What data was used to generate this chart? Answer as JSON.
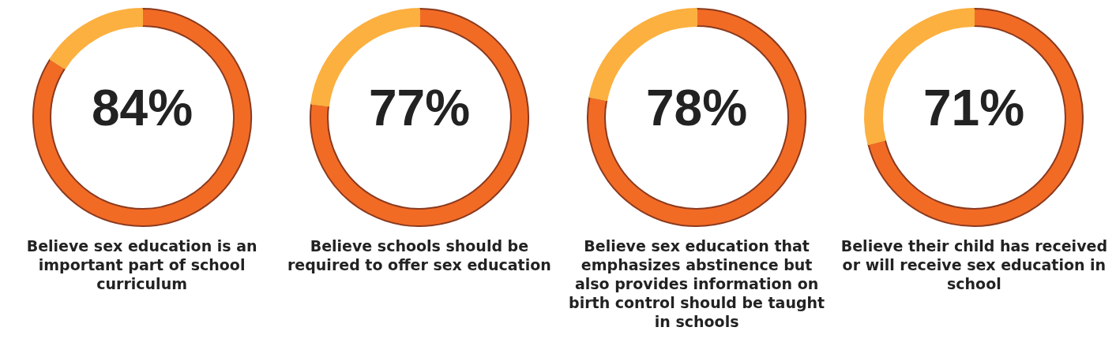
{
  "chart_data": [
    {
      "type": "donut",
      "title": "Believe sex education is an important part of school curriculum",
      "categories": [
        null,
        null
      ],
      "values": [
        84,
        16
      ],
      "colors": [
        "#f26b25",
        "#fbb040"
      ],
      "value_labels": [
        "84%",
        null
      ]
    },
    {
      "type": "donut",
      "title": "Believe schools should be required to offer sex education",
      "categories": [
        null,
        null
      ],
      "values": [
        77,
        23
      ],
      "colors": [
        "#f26b25",
        "#fbb040"
      ],
      "value_labels": [
        "77%",
        null
      ]
    },
    {
      "type": "donut",
      "title": "Believe sex education that emphasizes abstinence but also provides information on birth control should be taught in schools",
      "categories": [
        null,
        null
      ],
      "values": [
        78,
        22
      ],
      "colors": [
        "#f26b25",
        "#fbb040"
      ],
      "value_labels": [
        "78%",
        null
      ]
    },
    {
      "type": "donut",
      "title": "Believe their child has received or will receive sex education in school",
      "categories": [
        null,
        null
      ],
      "values": [
        71,
        29
      ],
      "colors": [
        "#f26b25",
        "#fbb040"
      ],
      "value_labels": [
        "71%",
        null
      ]
    }
  ]
}
